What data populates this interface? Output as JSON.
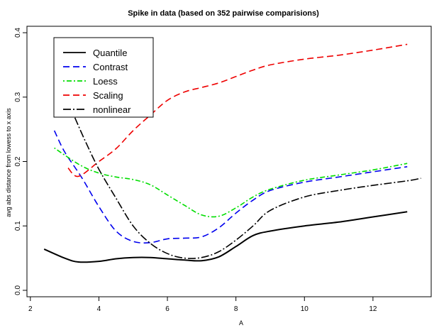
{
  "chart_data": {
    "type": "line",
    "title": "Spike in data (based on 352 pairwise comparisions)",
    "xlabel": "A",
    "ylabel": "avg abs distance from lowess to x axis",
    "xlim": [
      1.9,
      13.7
    ],
    "ylim": [
      -0.01,
      0.41
    ],
    "x_ticks": [
      "2",
      "4",
      "6",
      "8",
      "10",
      "12"
    ],
    "y_ticks": [
      "0.0",
      "0.1",
      "0.2",
      "0.3",
      "0.4"
    ],
    "legend_position": "top-left",
    "series": [
      {
        "name": "Quantile",
        "color": "#000000",
        "dash": "solid",
        "x": [
          2.4,
          3.0,
          3.4,
          4.0,
          4.5,
          5.0,
          5.5,
          6.0,
          6.5,
          7.0,
          7.5,
          8.0,
          8.5,
          9.0,
          10.0,
          11.0,
          12.0,
          13.0
        ],
        "y": [
          0.064,
          0.05,
          0.044,
          0.045,
          0.049,
          0.051,
          0.051,
          0.049,
          0.047,
          0.046,
          0.052,
          0.068,
          0.085,
          0.092,
          0.1,
          0.106,
          0.114,
          0.122
        ]
      },
      {
        "name": "Contrast",
        "color": "#0000ee",
        "dash": "dashed",
        "x": [
          2.7,
          3.0,
          3.5,
          4.0,
          4.5,
          5.0,
          5.5,
          6.0,
          6.5,
          7.0,
          7.5,
          8.0,
          8.5,
          9.0,
          10.0,
          11.0,
          12.0,
          13.0
        ],
        "y": [
          0.248,
          0.215,
          0.175,
          0.13,
          0.092,
          0.076,
          0.074,
          0.08,
          0.081,
          0.083,
          0.097,
          0.12,
          0.14,
          0.155,
          0.168,
          0.176,
          0.184,
          0.192
        ]
      },
      {
        "name": "Loess",
        "color": "#00dd00",
        "dash": "dot-dash",
        "x": [
          2.7,
          3.0,
          3.5,
          4.0,
          4.5,
          5.0,
          5.5,
          6.0,
          6.5,
          7.0,
          7.5,
          8.0,
          8.5,
          9.0,
          10.0,
          11.0,
          12.0,
          13.0
        ],
        "y": [
          0.221,
          0.21,
          0.193,
          0.182,
          0.176,
          0.172,
          0.164,
          0.148,
          0.132,
          0.117,
          0.115,
          0.128,
          0.145,
          0.157,
          0.171,
          0.179,
          0.187,
          0.197
        ]
      },
      {
        "name": "Scaling",
        "color": "#ee0000",
        "dash": "dashed",
        "x": [
          3.1,
          3.4,
          4.0,
          4.5,
          5.0,
          5.5,
          6.0,
          6.5,
          7.0,
          7.5,
          8.0,
          8.5,
          9.0,
          10.0,
          11.0,
          12.0,
          13.0
        ],
        "y": [
          0.19,
          0.177,
          0.2,
          0.22,
          0.248,
          0.272,
          0.295,
          0.308,
          0.315,
          0.322,
          0.332,
          0.342,
          0.35,
          0.359,
          0.365,
          0.373,
          0.382
        ]
      },
      {
        "name": "nonlinear",
        "color": "#000000",
        "dash": "long-dash-dot",
        "x": [
          3.3,
          3.6,
          4.0,
          4.5,
          5.0,
          5.5,
          6.0,
          6.5,
          7.0,
          7.5,
          8.0,
          8.5,
          9.0,
          10.0,
          11.0,
          12.0,
          13.0,
          13.4
        ],
        "y": [
          0.268,
          0.232,
          0.188,
          0.143,
          0.1,
          0.073,
          0.057,
          0.05,
          0.051,
          0.06,
          0.078,
          0.1,
          0.124,
          0.145,
          0.155,
          0.163,
          0.17,
          0.174
        ]
      }
    ]
  }
}
